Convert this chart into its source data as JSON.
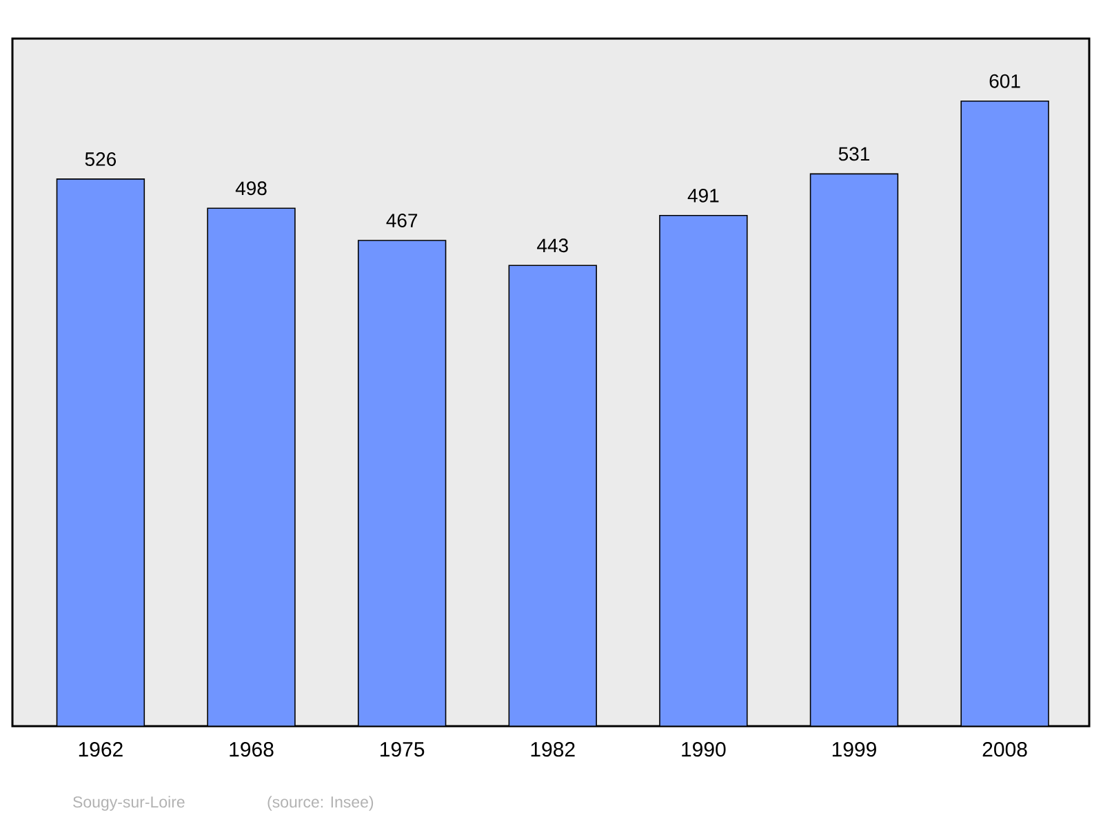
{
  "chart_data": {
    "type": "bar",
    "categories": [
      "1962",
      "1968",
      "1975",
      "1982",
      "1990",
      "1999",
      "2008"
    ],
    "values": [
      526,
      498,
      467,
      443,
      491,
      531,
      601
    ],
    "color": "#7095ff",
    "data_labels": true,
    "annotations": [
      "Sougy-sur-Loire",
      "(source: Insee)"
    ]
  }
}
